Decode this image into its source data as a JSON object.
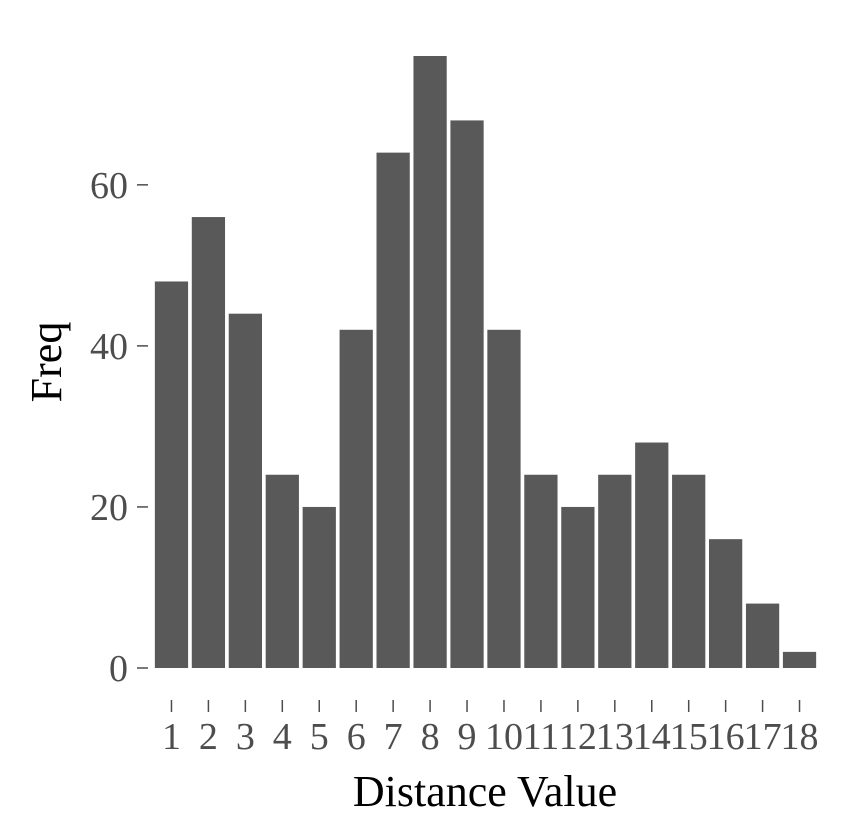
{
  "chart_data": {
    "type": "bar",
    "title": "",
    "xlabel": "Distance Value",
    "ylabel": "Freq",
    "categories": [
      "1",
      "2",
      "3",
      "4",
      "5",
      "6",
      "7",
      "8",
      "9",
      "10",
      "11",
      "12",
      "13",
      "14",
      "15",
      "16",
      "17",
      "18"
    ],
    "values": [
      48,
      56,
      44,
      24,
      20,
      42,
      64,
      76,
      68,
      42,
      24,
      20,
      24,
      28,
      24,
      16,
      8,
      2
    ],
    "yticks": [
      0,
      20,
      40,
      60
    ],
    "ytick_labels": [
      "0",
      "20",
      "40",
      "60"
    ],
    "ylim": [
      0,
      76
    ],
    "grid": false,
    "legend": "none",
    "bar_color": "#595959"
  }
}
